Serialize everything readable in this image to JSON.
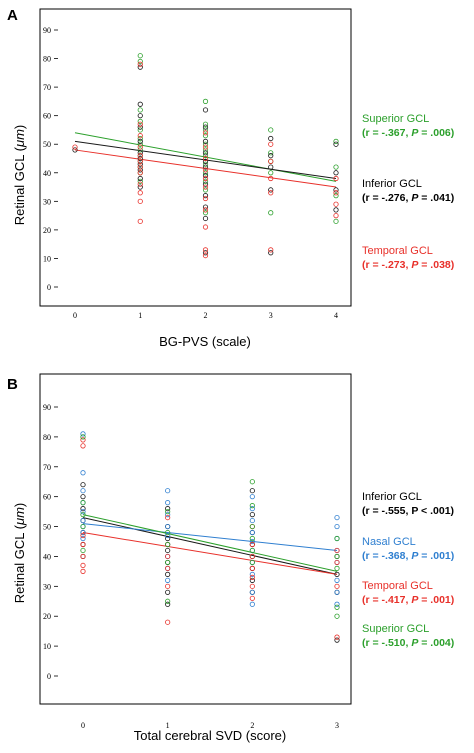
{
  "chart_data": [
    {
      "panel": "A",
      "type": "scatter",
      "xlabel": "BG-PVS (scale)",
      "ylabel_prefix": "Retinal GCL (",
      "ylabel_unit": "μm",
      "ylabel_suffix": ")",
      "xlim": [
        0,
        4
      ],
      "ylim": [
        0,
        90
      ],
      "x_ticks": [
        0,
        1,
        2,
        3,
        4
      ],
      "y_ticks": [
        0,
        10,
        20,
        30,
        40,
        50,
        60,
        70,
        80,
        90
      ],
      "series": [
        {
          "name": "Superior GCL",
          "color": "#2ca02c",
          "stats_prefix": "(r = -.367, ",
          "stats_p": "P",
          "stats_suffix": " = .006)",
          "fit": {
            "x": [
              0,
              4
            ],
            "y": [
              54,
              37
            ]
          },
          "points": [
            [
              1,
              81
            ],
            [
              1,
              79
            ],
            [
              1,
              62
            ],
            [
              1,
              58
            ],
            [
              1,
              55
            ],
            [
              1,
              52
            ],
            [
              1,
              50
            ],
            [
              1,
              48
            ],
            [
              1,
              46
            ],
            [
              1,
              44
            ],
            [
              1,
              42
            ],
            [
              1,
              40
            ],
            [
              1,
              37
            ],
            [
              2,
              65
            ],
            [
              2,
              57
            ],
            [
              2,
              55
            ],
            [
              2,
              53
            ],
            [
              2,
              50
            ],
            [
              2,
              48
            ],
            [
              2,
              46
            ],
            [
              2,
              43
            ],
            [
              2,
              40
            ],
            [
              2,
              37
            ],
            [
              2,
              34
            ],
            [
              2,
              26
            ],
            [
              3,
              55
            ],
            [
              3,
              47
            ],
            [
              3,
              44
            ],
            [
              3,
              40
            ],
            [
              3,
              26
            ],
            [
              4,
              51
            ],
            [
              4,
              42
            ],
            [
              4,
              32
            ],
            [
              4,
              23
            ]
          ]
        },
        {
          "name": "Inferior GCL",
          "color": "#1a1a1a",
          "stats_prefix": "(r = -.276, ",
          "stats_p": "P",
          "stats_suffix": " = .041)",
          "fit": {
            "x": [
              0,
              4
            ],
            "y": [
              51,
              38
            ]
          },
          "points": [
            [
              0,
              48
            ],
            [
              1,
              77
            ],
            [
              1,
              64
            ],
            [
              1,
              60
            ],
            [
              1,
              56
            ],
            [
              1,
              51
            ],
            [
              1,
              47
            ],
            [
              1,
              45
            ],
            [
              1,
              43
            ],
            [
              1,
              41
            ],
            [
              1,
              38
            ],
            [
              1,
              35
            ],
            [
              2,
              62
            ],
            [
              2,
              56
            ],
            [
              2,
              51
            ],
            [
              2,
              47
            ],
            [
              2,
              44
            ],
            [
              2,
              42
            ],
            [
              2,
              39
            ],
            [
              2,
              36
            ],
            [
              2,
              32
            ],
            [
              2,
              28
            ],
            [
              2,
              24
            ],
            [
              2,
              12
            ],
            [
              3,
              52
            ],
            [
              3,
              46
            ],
            [
              3,
              42
            ],
            [
              3,
              34
            ],
            [
              3,
              12
            ],
            [
              4,
              50
            ],
            [
              4,
              40
            ],
            [
              4,
              34
            ],
            [
              4,
              27
            ]
          ]
        },
        {
          "name": "Temporal GCL",
          "color": "#e8302a",
          "stats_prefix": "(r = -.273, ",
          "stats_p": "P",
          "stats_suffix": " = .038)",
          "fit": {
            "x": [
              0,
              4
            ],
            "y": [
              48,
              35
            ]
          },
          "points": [
            [
              0,
              49
            ],
            [
              1,
              78
            ],
            [
              1,
              57
            ],
            [
              1,
              53
            ],
            [
              1,
              49
            ],
            [
              1,
              46
            ],
            [
              1,
              44
            ],
            [
              1,
              42
            ],
            [
              1,
              40
            ],
            [
              1,
              36
            ],
            [
              1,
              33
            ],
            [
              1,
              30
            ],
            [
              1,
              23
            ],
            [
              2,
              54
            ],
            [
              2,
              49
            ],
            [
              2,
              45
            ],
            [
              2,
              41
            ],
            [
              2,
              38
            ],
            [
              2,
              35
            ],
            [
              2,
              31
            ],
            [
              2,
              27
            ],
            [
              2,
              21
            ],
            [
              2,
              13
            ],
            [
              2,
              11
            ],
            [
              3,
              50
            ],
            [
              3,
              44
            ],
            [
              3,
              38
            ],
            [
              3,
              33
            ],
            [
              3,
              13
            ],
            [
              4,
              38
            ],
            [
              4,
              33
            ],
            [
              4,
              29
            ],
            [
              4,
              25
            ]
          ]
        }
      ]
    },
    {
      "panel": "B",
      "type": "scatter",
      "xlabel": "Total cerebral SVD (score)",
      "ylabel_prefix": "Retinal GCL (",
      "ylabel_unit": "μm",
      "ylabel_suffix": ")",
      "xlim": [
        0,
        3
      ],
      "ylim": [
        0,
        90
      ],
      "x_ticks": [
        0,
        1,
        2,
        3
      ],
      "y_ticks": [
        0,
        10,
        20,
        30,
        40,
        50,
        60,
        70,
        80,
        90
      ],
      "series": [
        {
          "name": "Inferior GCL",
          "color": "#1a1a1a",
          "stats_prefix": "(r = -.555, P < .001)",
          "stats_p": "",
          "stats_suffix": "",
          "fit": {
            "x": [
              0,
              3
            ],
            "y": [
              53,
              34
            ]
          },
          "points": [
            [
              0,
              64
            ],
            [
              0,
              60
            ],
            [
              0,
              56
            ],
            [
              0,
              52
            ],
            [
              0,
              48
            ],
            [
              0,
              44
            ],
            [
              0,
              40
            ],
            [
              1,
              56
            ],
            [
              1,
              50
            ],
            [
              1,
              46
            ],
            [
              1,
              42
            ],
            [
              1,
              38
            ],
            [
              1,
              34
            ],
            [
              1,
              28
            ],
            [
              1,
              24
            ],
            [
              2,
              62
            ],
            [
              2,
              54
            ],
            [
              2,
              48
            ],
            [
              2,
              44
            ],
            [
              2,
              40
            ],
            [
              2,
              36
            ],
            [
              2,
              32
            ],
            [
              2,
              28
            ],
            [
              3,
              40
            ],
            [
              3,
              34
            ],
            [
              3,
              28
            ],
            [
              3,
              12
            ]
          ]
        },
        {
          "name": "Nasal GCL",
          "color": "#2f7fd0",
          "stats_prefix": "(r = -.368, ",
          "stats_p": "P",
          "stats_suffix": " = .001)",
          "fit": {
            "x": [
              0,
              3
            ],
            "y": [
              51,
              42
            ]
          },
          "points": [
            [
              0,
              81
            ],
            [
              0,
              68
            ],
            [
              0,
              62
            ],
            [
              0,
              58
            ],
            [
              0,
              55
            ],
            [
              0,
              52
            ],
            [
              0,
              50
            ],
            [
              0,
              48
            ],
            [
              0,
              46
            ],
            [
              1,
              62
            ],
            [
              1,
              58
            ],
            [
              1,
              54
            ],
            [
              1,
              50
            ],
            [
              1,
              47
            ],
            [
              1,
              44
            ],
            [
              1,
              40
            ],
            [
              1,
              36
            ],
            [
              1,
              32
            ],
            [
              2,
              60
            ],
            [
              2,
              56
            ],
            [
              2,
              52
            ],
            [
              2,
              48
            ],
            [
              2,
              45
            ],
            [
              2,
              42
            ],
            [
              2,
              38
            ],
            [
              2,
              34
            ],
            [
              2,
              28
            ],
            [
              2,
              24
            ],
            [
              3,
              53
            ],
            [
              3,
              50
            ],
            [
              3,
              46
            ],
            [
              3,
              42
            ],
            [
              3,
              38
            ],
            [
              3,
              32
            ],
            [
              3,
              28
            ],
            [
              3,
              24
            ]
          ]
        },
        {
          "name": "Temporal GCL",
          "color": "#e8302a",
          "stats_prefix": "(r = -.417, ",
          "stats_p": "P",
          "stats_suffix": " = .001)",
          "fit": {
            "x": [
              0,
              3
            ],
            "y": [
              48,
              34
            ]
          },
          "points": [
            [
              0,
              79
            ],
            [
              0,
              77
            ],
            [
              0,
              47
            ],
            [
              0,
              44
            ],
            [
              0,
              40
            ],
            [
              0,
              37
            ],
            [
              0,
              35
            ],
            [
              1,
              53
            ],
            [
              1,
              44
            ],
            [
              1,
              40
            ],
            [
              1,
              36
            ],
            [
              1,
              30
            ],
            [
              1,
              18
            ],
            [
              2,
              50
            ],
            [
              2,
              44
            ],
            [
              2,
              40
            ],
            [
              2,
              36
            ],
            [
              2,
              33
            ],
            [
              2,
              30
            ],
            [
              2,
              26
            ],
            [
              3,
              42
            ],
            [
              3,
              38
            ],
            [
              3,
              30
            ],
            [
              3,
              13
            ]
          ]
        },
        {
          "name": "Superior GCL",
          "color": "#2ca02c",
          "stats_prefix": "(r = -.510, ",
          "stats_p": "P",
          "stats_suffix": " = .004)",
          "fit": {
            "x": [
              0,
              3
            ],
            "y": [
              54,
              35
            ]
          },
          "points": [
            [
              0,
              80
            ],
            [
              0,
              58
            ],
            [
              0,
              54
            ],
            [
              0,
              50
            ],
            [
              0,
              42
            ],
            [
              1,
              55
            ],
            [
              1,
              48
            ],
            [
              1,
              44
            ],
            [
              1,
              38
            ],
            [
              1,
              25
            ],
            [
              2,
              65
            ],
            [
              2,
              57
            ],
            [
              2,
              50
            ],
            [
              2,
              46
            ],
            [
              2,
              42
            ],
            [
              2,
              38
            ],
            [
              3,
              46
            ],
            [
              3,
              40
            ],
            [
              3,
              36
            ],
            [
              3,
              23
            ],
            [
              3,
              20
            ]
          ]
        }
      ]
    }
  ]
}
